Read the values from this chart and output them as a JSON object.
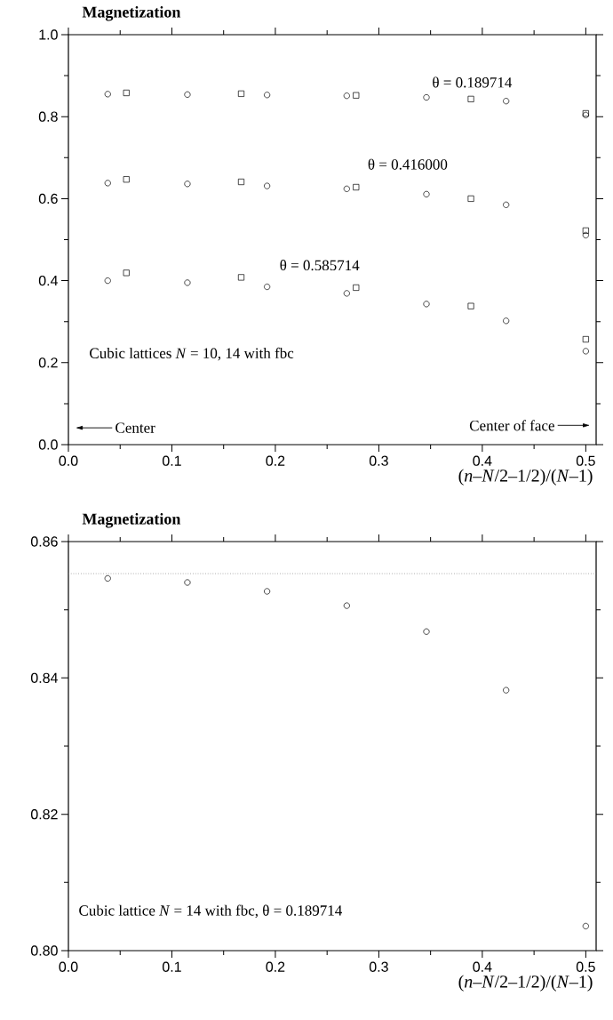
{
  "chart_data": [
    {
      "type": "scatter",
      "title": "Magnetization",
      "xlabel": "(*n*–*N*/2–1/2)/(*N*–1)",
      "xlim": [
        0,
        0.51
      ],
      "ylim": [
        0,
        1
      ],
      "xticks": [
        {
          "value": 0,
          "label": "0.0"
        },
        0.1,
        0.2,
        0.3,
        0.4,
        0.5,
        {
          "value": 0.05,
          "label": null
        },
        {
          "value": 0.15,
          "label": null
        },
        {
          "value": 0.25,
          "label": null
        },
        {
          "value": 0.35,
          "label": null
        },
        {
          "value": 0.45,
          "label": null
        }
      ],
      "yticks": [
        {
          "value": 0,
          "label": "0.0"
        },
        0.2,
        0.4,
        0.6,
        0.8,
        {
          "value": 1,
          "label": "1.0"
        },
        {
          "value": 0.1,
          "label": null
        },
        {
          "value": 0.3,
          "label": null
        },
        {
          "value": 0.5,
          "label": null
        },
        {
          "value": 0.7,
          "label": null
        },
        {
          "value": 0.9,
          "label": null
        }
      ],
      "series": [
        {
          "color": "#000000",
          "marker": "circle",
          "x": [
            0.038,
            0.115,
            0.192,
            0.269,
            0.346,
            0.423,
            0.5
          ],
          "values": [
            0.855,
            0.854,
            0.853,
            0.851,
            0.847,
            0.838,
            0.804
          ]
        },
        {
          "color": "#000000",
          "marker": "square",
          "x": [
            0.056,
            0.167,
            0.278,
            0.389,
            0.5
          ],
          "values": [
            0.858,
            0.856,
            0.852,
            0.843,
            0.808
          ]
        },
        {
          "color": "#000000",
          "marker": "circle",
          "x": [
            0.038,
            0.115,
            0.192,
            0.269,
            0.346,
            0.423,
            0.5
          ],
          "values": [
            0.638,
            0.636,
            0.631,
            0.624,
            0.611,
            0.585,
            0.511
          ]
        },
        {
          "color": "#000000",
          "marker": "square",
          "x": [
            0.056,
            0.167,
            0.278,
            0.389,
            0.5
          ],
          "values": [
            0.647,
            0.641,
            0.628,
            0.6,
            0.522
          ]
        },
        {
          "color": "#000000",
          "marker": "circle",
          "x": [
            0.038,
            0.115,
            0.192,
            0.269,
            0.346,
            0.423,
            0.5
          ],
          "values": [
            0.4,
            0.395,
            0.385,
            0.369,
            0.343,
            0.302,
            0.228
          ]
        },
        {
          "color": "#000000",
          "marker": "square",
          "x": [
            0.056,
            0.167,
            0.278,
            0.389,
            0.5
          ],
          "values": [
            0.419,
            0.408,
            0.383,
            0.338,
            0.257
          ]
        }
      ],
      "annotations": [
        "θ = 0.189714",
        "θ = 0.416000",
        "θ = 0.585714",
        "Cubic lattices *N* = 10, 14 with fbc",
        "Center",
        "Center of face"
      ]
    },
    {
      "type": "scatter",
      "title": "Magnetization",
      "xlabel": "(*n*–*N*/2–1/2)/(*N*–1)",
      "xlim": [
        0,
        0.51
      ],
      "ylim": [
        0.8,
        0.86
      ],
      "xticks": [
        {
          "value": 0,
          "label": "0.0"
        },
        0.1,
        0.2,
        0.3,
        0.4,
        0.5,
        {
          "value": 0.05,
          "label": null
        },
        {
          "value": 0.15,
          "label": null
        },
        {
          "value": 0.25,
          "label": null
        },
        {
          "value": 0.35,
          "label": null
        },
        {
          "value": 0.45,
          "label": null
        }
      ],
      "yticks": [
        {
          "value": 0.8,
          "label": "0.80"
        },
        0.82,
        0.84,
        0.86,
        {
          "value": 0.81,
          "label": null
        },
        {
          "value": 0.83,
          "label": null
        },
        {
          "value": 0.85,
          "label": null
        }
      ],
      "series": [
        {
          "color": "#000000",
          "marker": "circle",
          "x": [
            0.038,
            0.115,
            0.192,
            0.269,
            0.346,
            0.423,
            0.5
          ],
          "values": [
            0.8546,
            0.854,
            0.8527,
            0.8506,
            0.8468,
            0.8382,
            0.8036
          ]
        }
      ],
      "ref_lines": [
        {
          "axis": "y",
          "value": 0.8553,
          "color": "#808080",
          "line_style": "dotted"
        }
      ],
      "annotations": [
        "Cubic lattice *N* = 14 with fbc, θ = 0.189714"
      ]
    }
  ]
}
